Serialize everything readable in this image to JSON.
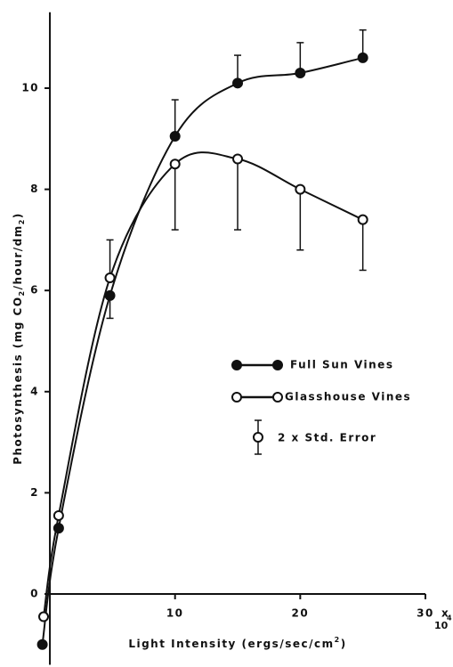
{
  "chart_data": {
    "type": "line",
    "x_label": [
      "Light Intensity   (ergs/sec/cm",
      "2",
      ")"
    ],
    "y_label": [
      "Photosynthesis  (mg CO",
      "2",
      "/hour/dm",
      "2",
      ")"
    ],
    "multiplier": [
      "x",
      "10",
      "4"
    ],
    "xlim": [
      -0.6,
      30
    ],
    "ylim": [
      -1.4,
      11.5
    ],
    "xticks": [
      10,
      20,
      30
    ],
    "yticks": [
      0,
      2,
      4,
      6,
      8,
      10
    ],
    "series": [
      {
        "name": "Full Sun   Vines",
        "color": "#111",
        "filled": true,
        "x": [
          -0.6,
          0.7,
          4.8,
          10,
          15,
          20,
          25
        ],
        "values": [
          -1.0,
          1.3,
          5.9,
          9.05,
          10.1,
          10.3,
          10.6
        ],
        "errors": [
          null,
          null,
          0.45,
          0.72,
          0.55,
          0.6,
          0.55
        ],
        "error_side": [
          null,
          null,
          "down",
          "up",
          "up",
          "up",
          "up"
        ]
      },
      {
        "name": "Glasshouse Vines",
        "color": "#111",
        "filled": false,
        "x": [
          -0.5,
          0.7,
          4.8,
          10,
          15,
          20,
          25
        ],
        "values": [
          -0.45,
          1.55,
          6.25,
          8.5,
          8.6,
          8.0,
          7.4
        ],
        "errors": [
          null,
          null,
          0.75,
          1.3,
          1.4,
          1.2,
          1.0
        ],
        "error_side": [
          null,
          null,
          "up",
          "down",
          "down",
          "down",
          "down"
        ]
      }
    ],
    "error_legend": "2 x Std. Error"
  }
}
